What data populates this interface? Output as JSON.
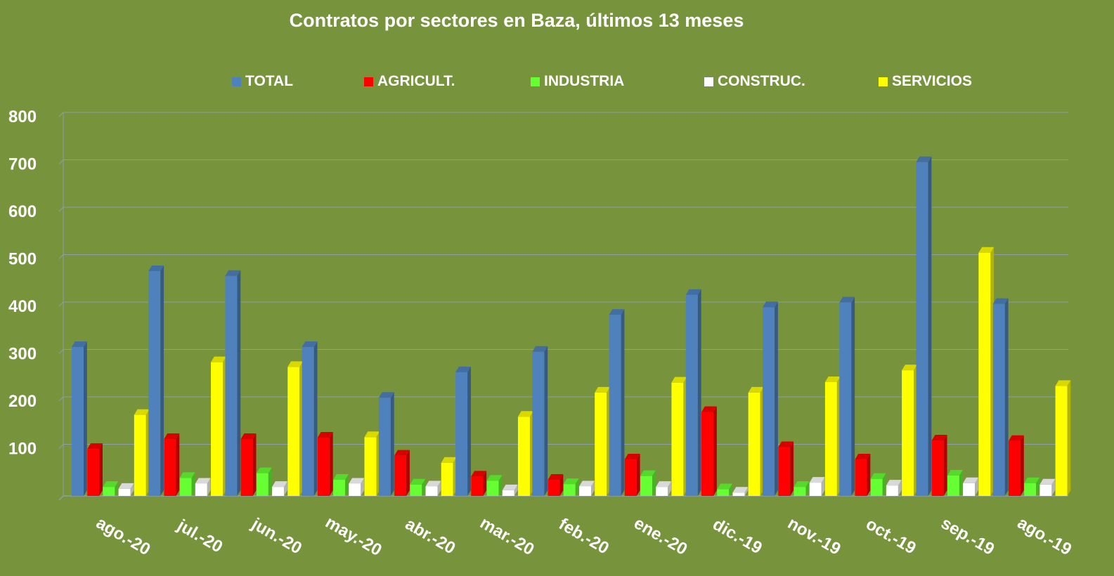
{
  "chart_data": {
    "type": "bar",
    "title": "Contratos por sectores en Baza, últimos 13 meses",
    "categories": [
      "ago.-20",
      "jul.-20",
      "jun.-20",
      "may.-20",
      "abr.-20",
      "mar.-20",
      "feb.-20",
      "ene.-20",
      "dic.-19",
      "nov.-19",
      "oct.-19",
      "sep.-19",
      "ago.-19"
    ],
    "series": [
      {
        "name": "TOTAL",
        "color": "#4f81bd",
        "values": [
          314,
          474,
          464,
          314,
          207,
          261,
          304,
          382,
          424,
          398,
          408,
          704,
          405
        ]
      },
      {
        "name": "AGRICULT.",
        "color": "#ff0000",
        "values": [
          99,
          120,
          120,
          123,
          85,
          41,
          34,
          77,
          177,
          103,
          77,
          117,
          116
        ]
      },
      {
        "name": "INDUSTRIA",
        "color": "#66ff33",
        "values": [
          19,
          38,
          48,
          34,
          24,
          32,
          25,
          42,
          14,
          19,
          36,
          43,
          27
        ]
      },
      {
        "name": "CONSTRUC.",
        "color": "#ffffff",
        "values": [
          15,
          26,
          19,
          26,
          20,
          12,
          20,
          19,
          7,
          28,
          22,
          27,
          24
        ]
      },
      {
        "name": "SERVICIOS",
        "color": "#ffff00",
        "values": [
          171,
          282,
          272,
          124,
          70,
          167,
          218,
          239,
          218,
          240,
          265,
          513,
          232
        ]
      }
    ],
    "ylim": [
      0,
      800
    ],
    "yticks": [
      100,
      200,
      300,
      400,
      500,
      600,
      700,
      800
    ],
    "grid": true,
    "legend": "top"
  }
}
